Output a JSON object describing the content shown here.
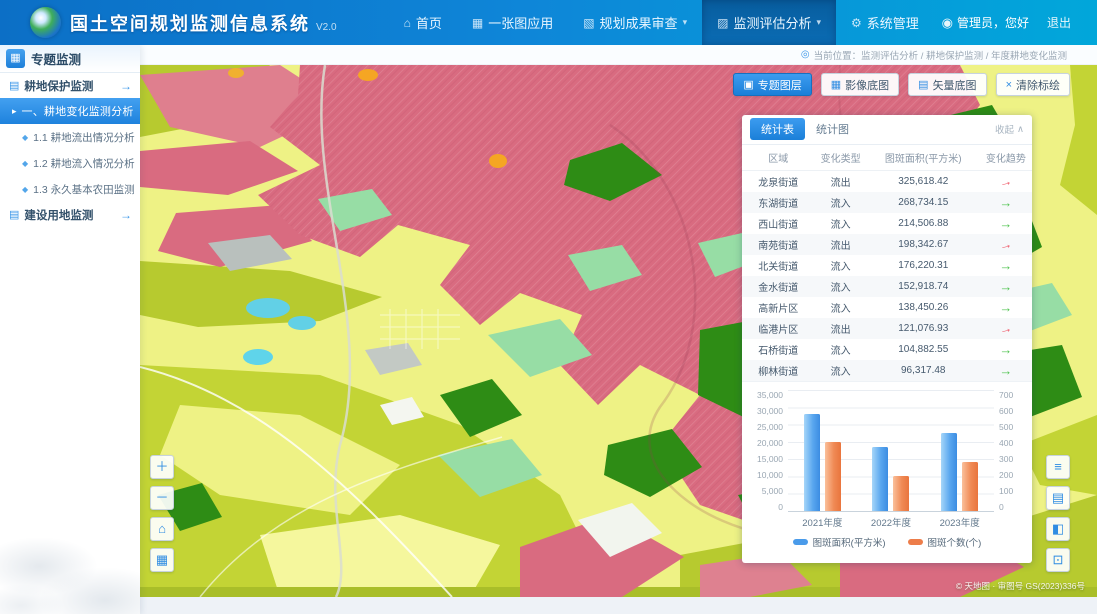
{
  "app": {
    "title": "国土空间规划监测信息系统",
    "version": "V2.0"
  },
  "navbar": {
    "tabs": [
      {
        "label": "首页"
      },
      {
        "label": "一张图应用"
      },
      {
        "label": "规划成果审查",
        "caret": "▾"
      },
      {
        "label": "监测评估分析",
        "caret": "▾",
        "active": true
      },
      {
        "label": "系统管理"
      }
    ],
    "user": "管理员，您好",
    "logout": "退出"
  },
  "breadcrumb": {
    "label": "当前位置：监测评估分析 / 耕地保护监测 / 年度耕地变化监测"
  },
  "sidebar": {
    "title": "专题监测",
    "sections": [
      {
        "label": "耕地保护监测",
        "arrow": "→"
      },
      {
        "label": "建设用地监测",
        "arrow": "→"
      }
    ],
    "active_item": "一、耕地变化监测分析",
    "items": [
      "1.1 耕地流出情况分析",
      "1.2 耕地流入情况分析",
      "1.3 永久基本农田监测"
    ]
  },
  "map": {
    "toolbar": [
      {
        "label": "专题图层",
        "active": true
      },
      {
        "label": "影像底图"
      },
      {
        "label": "矢量底图"
      },
      {
        "label": "清除标绘"
      }
    ],
    "attribution": "© 天地图 · 审图号 GS(2023)336号",
    "legend_colors": {
      "urban": "#d96b80",
      "cropland": "#eef285",
      "garden": "#b7ca2f",
      "forest": "#2e8c15",
      "grass": "#97dda5",
      "water": "#62d0e6"
    }
  },
  "panel": {
    "tabs": [
      {
        "label": "统计表",
        "active": true
      },
      {
        "label": "统计图"
      }
    ],
    "collapse_label": "收起",
    "table": {
      "headers": [
        "区域",
        "变化类型",
        "图斑面积(平方米)",
        "变化趋势"
      ],
      "rows": [
        {
          "region": "龙泉街道",
          "type": "流出",
          "area": "325,618.42",
          "trend": "up"
        },
        {
          "region": "东湖街道",
          "type": "流入",
          "area": "268,734.15",
          "trend": "down"
        },
        {
          "region": "西山街道",
          "type": "流入",
          "area": "214,506.88",
          "trend": "down"
        },
        {
          "region": "南苑街道",
          "type": "流出",
          "area": "198,342.67",
          "trend": "up"
        },
        {
          "region": "北关街道",
          "type": "流入",
          "area": "176,220.31",
          "trend": "down"
        },
        {
          "region": "金水街道",
          "type": "流入",
          "area": "152,918.74",
          "trend": "down"
        },
        {
          "region": "高新片区",
          "type": "流入",
          "area": "138,450.26",
          "trend": "down"
        },
        {
          "region": "临港片区",
          "type": "流出",
          "area": "121,076.93",
          "trend": "up"
        },
        {
          "region": "石桥街道",
          "type": "流入",
          "area": "104,882.55",
          "trend": "down"
        },
        {
          "region": "柳林街道",
          "type": "流入",
          "area": "96,317.48",
          "trend": "down"
        }
      ]
    },
    "chart_data": {
      "type": "bar",
      "categories": [
        "2021年度",
        "2022年度",
        "2023年度"
      ],
      "series": [
        {
          "name": "图斑面积(平方米)",
          "color": "#4a9bea",
          "axis": "left",
          "values": [
            28000,
            18500,
            22500
          ]
        },
        {
          "name": "图斑个数(个)",
          "color": "#ed7d4a",
          "axis": "right",
          "values": [
            400,
            200,
            280
          ]
        }
      ],
      "ylim_left": [
        0,
        35000
      ],
      "ylim_right": [
        0,
        700
      ],
      "y_ticks_left": [
        "35,000",
        "30,000",
        "25,000",
        "20,000",
        "15,000",
        "10,000",
        "5,000",
        "0"
      ],
      "y_ticks_right": [
        "700",
        "600",
        "500",
        "400",
        "300",
        "200",
        "100",
        "0"
      ],
      "grid": true,
      "legend_position": "bottom"
    }
  }
}
